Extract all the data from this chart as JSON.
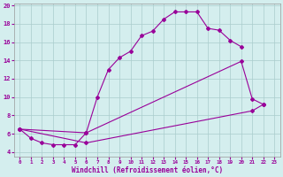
{
  "xlabel": "Windchill (Refroidissement éolien,°C)",
  "background_color": "#d4eeee",
  "line_color": "#990099",
  "xlim": [
    -0.5,
    23.5
  ],
  "ylim": [
    3.5,
    20.2
  ],
  "xticks": [
    0,
    1,
    2,
    3,
    4,
    5,
    6,
    7,
    8,
    9,
    10,
    11,
    12,
    13,
    14,
    15,
    16,
    17,
    18,
    19,
    20,
    21,
    22,
    23
  ],
  "yticks": [
    4,
    6,
    8,
    10,
    12,
    14,
    16,
    18,
    20
  ],
  "grid_color": "#aacccc",
  "curve1_x": [
    0,
    1,
    2,
    3,
    4,
    5,
    6,
    7,
    8,
    9,
    10,
    11,
    12,
    13,
    14,
    15,
    16,
    17,
    18,
    19,
    20
  ],
  "curve1_y": [
    6.5,
    5.5,
    5.0,
    4.8,
    4.8,
    4.8,
    6.1,
    10.0,
    13.0,
    14.3,
    15.0,
    16.7,
    17.2,
    18.5,
    19.3,
    19.3,
    19.3,
    17.5,
    17.3,
    16.2,
    15.5
  ],
  "curve2_x": [
    0,
    6,
    20,
    21,
    22
  ],
  "curve2_y": [
    6.5,
    6.1,
    13.9,
    9.8,
    9.2
  ],
  "curve3_x": [
    0,
    6,
    21,
    22
  ],
  "curve3_y": [
    6.5,
    5.0,
    8.5,
    9.2
  ]
}
